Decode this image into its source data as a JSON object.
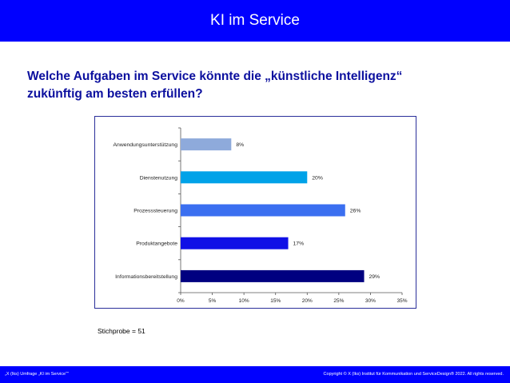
{
  "header": {
    "title": "KI im Service"
  },
  "question": {
    "line1": "Welche Aufgaben im Service könnte die „künstliche Intelligenz“",
    "line2": "zukünftig am besten erfüllen?"
  },
  "chart_data": {
    "type": "bar",
    "orientation": "horizontal",
    "categories": [
      "Anwendungsunterstützung",
      "Dienstenutzung",
      "Prozesssteuerung",
      "Produktangebote",
      "Informationsbereitstellung"
    ],
    "values": [
      8,
      20,
      26,
      17,
      29
    ],
    "value_labels": [
      "8%",
      "20%",
      "26%",
      "17%",
      "29%"
    ],
    "colors": [
      "#8eaadb",
      "#00a2e8",
      "#3b6ff0",
      "#1010e6",
      "#000080"
    ],
    "xlim": [
      0,
      35
    ],
    "xticks": [
      "0%",
      "5%",
      "10%",
      "15%",
      "20%",
      "25%",
      "30%",
      "35%"
    ],
    "grid": false
  },
  "sample": {
    "text": "Stichprobe = 51"
  },
  "footer": {
    "left": "„X (Iks) Umfrage „KI im Service“\"",
    "right": "Copyright © X (Iks) Institut für Kommunikation und ServiceDesign® 2022. All rights reserved."
  }
}
